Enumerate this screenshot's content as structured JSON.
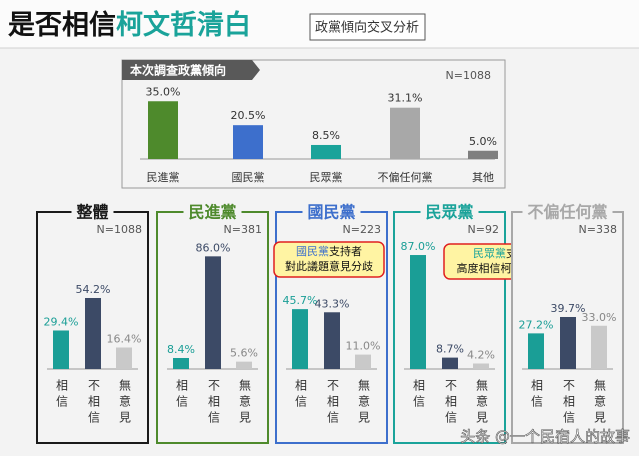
{
  "header": {
    "title": [
      "是否相信",
      "柯文哲清白"
    ],
    "tag": "政黨傾向交叉分析"
  },
  "watermark": "头条 @一个民宿人的故事",
  "chart_data": [
    {
      "type": "bar",
      "title": "本次調查政黨傾向",
      "n": "N=1088",
      "categories": [
        "民進黨",
        "國民黨",
        "民眾黨",
        "不偏任何黨",
        "其他"
      ],
      "values": [
        35.0,
        20.5,
        8.5,
        31.1,
        5.0
      ],
      "value_labels": [
        "35.0%",
        "20.5%",
        "8.5%",
        "31.1%",
        "5.0%"
      ],
      "colors": [
        "#4e8a2c",
        "#3d6fcc",
        "#1aa39a",
        "#a8a8a8",
        "#7f7f7f"
      ]
    },
    {
      "type": "bar",
      "title": "整體",
      "n": "N=1088",
      "color": "#1a1a1a",
      "categories": [
        "相信",
        "不相信",
        "無意見"
      ],
      "values": [
        29.4,
        54.2,
        16.4
      ],
      "value_labels": [
        "29.4%",
        "54.2%",
        "16.4%"
      ],
      "colors": [
        "#1a9e96",
        "#3c4a66",
        "#c9c9c9"
      ]
    },
    {
      "type": "bar",
      "title": "民進黨",
      "n": "N=381",
      "color": "#4e8a2c",
      "categories": [
        "相信",
        "不相信",
        "無意見"
      ],
      "values": [
        8.4,
        86.0,
        5.6
      ],
      "value_labels": [
        "8.4%",
        "86.0%",
        "5.6%"
      ],
      "colors": [
        "#1a9e96",
        "#3c4a66",
        "#c9c9c9"
      ]
    },
    {
      "type": "bar",
      "title": "國民黨",
      "n": "N=223",
      "color": "#3d6fcc",
      "categories": [
        "相信",
        "不相信",
        "無意見"
      ],
      "values": [
        45.7,
        43.3,
        11.0
      ],
      "value_labels": [
        "45.7%",
        "43.3%",
        "11.0%"
      ],
      "colors": [
        "#1a9e96",
        "#3c4a66",
        "#c9c9c9"
      ],
      "annotation": [
        [
          "國民黨",
          "支持者"
        ],
        [
          "對此議題意見分歧"
        ]
      ]
    },
    {
      "type": "bar",
      "title": "民眾黨",
      "n": "N=92",
      "color": "#1aa39a",
      "categories": [
        "相信",
        "不相信",
        "無意見"
      ],
      "values": [
        87.0,
        8.7,
        4.2
      ],
      "value_labels": [
        "87.0%",
        "8.7%",
        "4.2%"
      ],
      "colors": [
        "#1a9e96",
        "#3c4a66",
        "#c9c9c9"
      ],
      "annotation": [
        [
          "民眾黨",
          "支持者"
        ],
        [
          "高度相信柯文哲清白"
        ]
      ]
    },
    {
      "type": "bar",
      "title": "不偏任何黨",
      "n": "N=338",
      "color": "#a8a8a8",
      "categories": [
        "相信",
        "不相信",
        "無意見"
      ],
      "values": [
        27.2,
        39.7,
        33.0
      ],
      "value_labels": [
        "27.2%",
        "39.7%",
        "33.0%"
      ],
      "colors": [
        "#1a9e96",
        "#3c4a66",
        "#c9c9c9"
      ]
    }
  ]
}
